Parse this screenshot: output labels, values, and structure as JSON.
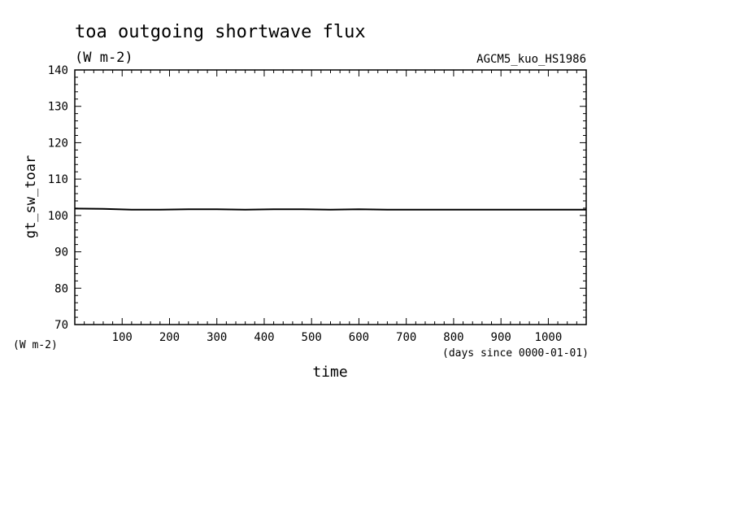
{
  "chart_data": {
    "type": "line",
    "title": "toa outgoing shortwave flux",
    "subtitle": "(W m-2)",
    "run_label": "AGCM5_kuo_HS1986",
    "xlabel": "time",
    "x_units": "(days since 0000-01-01)",
    "ylabel": "gt_sw_toar",
    "y_units": "(W m-2)",
    "xlim": [
      0,
      1080
    ],
    "ylim": [
      70,
      140
    ],
    "x_ticks": [
      100,
      200,
      300,
      400,
      500,
      600,
      700,
      800,
      900,
      1000
    ],
    "x_tick_labels": [
      "100",
      "200",
      "300",
      "400",
      "500",
      "600",
      "700",
      "800",
      "900",
      "1000"
    ],
    "y_ticks": [
      70,
      80,
      90,
      100,
      110,
      120,
      130,
      140
    ],
    "y_tick_labels": [
      "70",
      "80",
      "90",
      "100",
      "110",
      "120",
      "130",
      "140"
    ],
    "grid": false,
    "series": [
      {
        "x": [
          0,
          60,
          120,
          180,
          240,
          300,
          360,
          420,
          480,
          540,
          600,
          660,
          720,
          780,
          840,
          900,
          960,
          1020,
          1080
        ],
        "values": [
          101.9,
          101.8,
          101.6,
          101.6,
          101.7,
          101.7,
          101.6,
          101.7,
          101.7,
          101.6,
          101.7,
          101.6,
          101.6,
          101.6,
          101.6,
          101.6,
          101.6,
          101.6,
          101.6
        ]
      }
    ],
    "colors": {
      "line": "#000000",
      "axes": "#000000",
      "background": "#ffffff"
    }
  }
}
